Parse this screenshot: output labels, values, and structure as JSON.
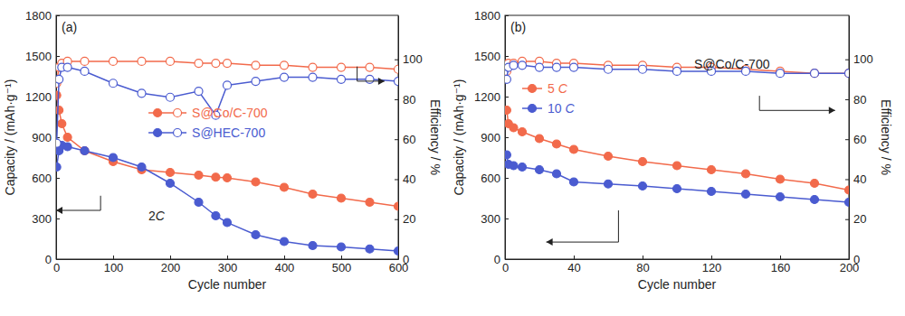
{
  "chart_data": [
    {
      "type": "line",
      "title": "(a)",
      "xlabel": "Cycle number",
      "ylabel": "Capacity / (mAh·g⁻¹)",
      "y2label": "Efficiency / %",
      "x": [
        1,
        5,
        10,
        20,
        50,
        100,
        150,
        200,
        250,
        280,
        300,
        350,
        400,
        450,
        500,
        550,
        600
      ],
      "xlim": [
        0,
        600
      ],
      "xticks": [
        0,
        100,
        200,
        300,
        400,
        500,
        600
      ],
      "ylim": [
        0,
        1800
      ],
      "yticks": [
        0,
        300,
        600,
        900,
        1200,
        1500,
        1800
      ],
      "y2lim": [
        0,
        122
      ],
      "y2ticks": [
        0,
        20,
        40,
        60,
        80,
        100
      ],
      "grid": false,
      "legend": "center",
      "annotations": [
        "2C"
      ],
      "series": [
        {
          "name": "S@Co/C-700",
          "color": "#f26a4b",
          "marker": "circle",
          "values": [
            1210,
            1100,
            1000,
            900,
            800,
            720,
            660,
            640,
            620,
            605,
            600,
            570,
            530,
            480,
            450,
            420,
            390
          ]
        },
        {
          "name": "S@HEC-700",
          "color": "#4a5bd0",
          "marker": "circle",
          "values": [
            680,
            800,
            840,
            830,
            800,
            750,
            680,
            560,
            420,
            320,
            270,
            180,
            130,
            100,
            90,
            75,
            60
          ]
        },
        {
          "name": "S@Co/C-700",
          "color": "#f26a4b",
          "marker": "circle-open",
          "axis": "y2",
          "values": [
            88,
            96,
            98,
            99,
            99,
            99,
            99,
            99,
            98,
            98,
            98,
            97,
            97,
            96,
            96,
            96,
            95
          ]
        },
        {
          "name": "S@HEC-700",
          "color": "#4a5bd0",
          "marker": "circle-open",
          "axis": "y2",
          "values": [
            58,
            90,
            96,
            96,
            94,
            88,
            83,
            81,
            84,
            72,
            87,
            89,
            91,
            91,
            90,
            90,
            89
          ]
        }
      ]
    },
    {
      "type": "line",
      "title": "(b)",
      "xlabel": "Cycle number",
      "ylabel": "Capacity / (mAh·g⁻¹)",
      "y2label": "Efficiency / %",
      "x": [
        1,
        2,
        5,
        10,
        20,
        30,
        40,
        60,
        80,
        100,
        120,
        140,
        160,
        180,
        200
      ],
      "xlim": [
        0,
        200
      ],
      "xticks": [
        0,
        40,
        80,
        120,
        160,
        200
      ],
      "ylim": [
        0,
        1800
      ],
      "yticks": [
        0,
        300,
        600,
        900,
        1200,
        1500,
        1800
      ],
      "y2lim": [
        0,
        122
      ],
      "y2ticks": [
        0,
        20,
        40,
        60,
        80,
        100
      ],
      "grid": false,
      "legend": "left",
      "annotations": [
        "S@Co/C-700"
      ],
      "series": [
        {
          "name": "5 C",
          "color": "#f26a4b",
          "marker": "circle",
          "values": [
            1100,
            1000,
            970,
            940,
            890,
            850,
            810,
            760,
            720,
            690,
            660,
            630,
            590,
            560,
            510
          ]
        },
        {
          "name": "10 C",
          "color": "#4a5bd0",
          "marker": "circle",
          "values": [
            770,
            700,
            690,
            680,
            660,
            630,
            570,
            555,
            540,
            520,
            500,
            480,
            460,
            440,
            420
          ]
        },
        {
          "color": "#f26a4b",
          "marker": "circle-open",
          "axis": "y2",
          "values": [
            94,
            98,
            98,
            99,
            99,
            98,
            98,
            97,
            97,
            96,
            96,
            95,
            94,
            93,
            93
          ]
        },
        {
          "color": "#4a5bd0",
          "marker": "circle-open",
          "axis": "y2",
          "values": [
            90,
            96,
            97,
            97,
            96,
            96,
            96,
            95,
            95,
            94,
            94,
            94,
            93,
            93,
            93
          ]
        }
      ]
    }
  ]
}
